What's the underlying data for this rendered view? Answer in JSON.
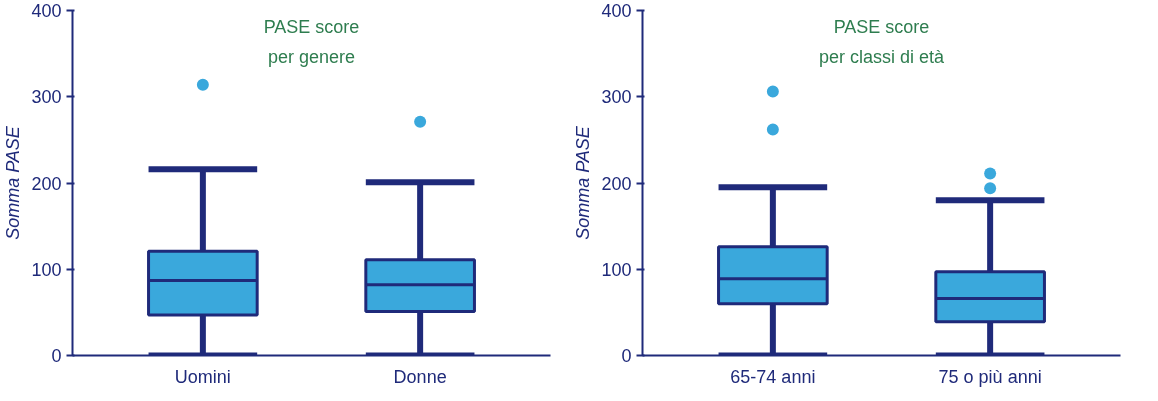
{
  "chart_data": [
    {
      "type": "box",
      "title": "PASE score\nper genere",
      "ylabel": "Somma PASE",
      "categories": [
        "Uomini",
        "Donne"
      ],
      "ylim": [
        0,
        400
      ],
      "yticks": [
        0,
        100,
        200,
        300,
        400
      ],
      "grid": false,
      "series": [
        {
          "color": "#3aa8dc",
          "boxes": [
            {
              "low": 0,
              "q1": 47,
              "median": 87,
              "q3": 121,
              "high": 216,
              "outliers": [
                314
              ]
            },
            {
              "low": 0,
              "q1": 51,
              "median": 82,
              "q3": 111,
              "high": 201,
              "outliers": [
                271
              ]
            }
          ]
        }
      ]
    },
    {
      "type": "box",
      "title": "PASE score\nper classi di età",
      "ylabel": "Somma PASE",
      "categories": [
        "65-74 anni",
        "75 o più anni"
      ],
      "ylim": [
        0,
        400
      ],
      "yticks": [
        0,
        100,
        200,
        300,
        400
      ],
      "grid": false,
      "series": [
        {
          "color": "#3aa8dc",
          "boxes": [
            {
              "low": 0,
              "q1": 60,
              "median": 89,
              "q3": 126,
              "high": 195,
              "outliers": [
                306,
                262
              ]
            },
            {
              "low": 0,
              "q1": 39,
              "median": 66,
              "q3": 97,
              "high": 180,
              "outliers": [
                211,
                194
              ]
            }
          ]
        }
      ]
    }
  ]
}
